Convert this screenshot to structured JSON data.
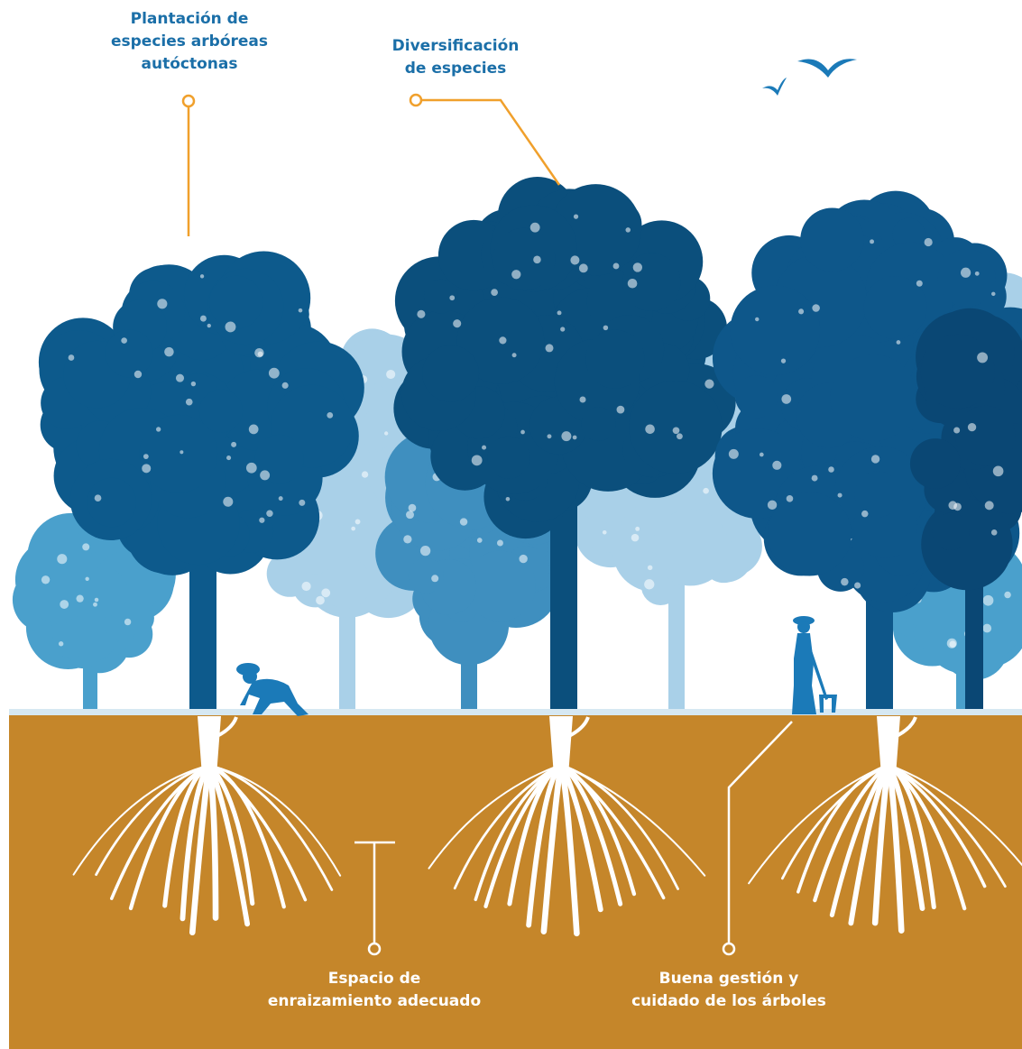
{
  "callouts": [
    {
      "lines": [
        "Plantación de",
        "especies arbóreas",
        "autóctonas"
      ]
    },
    {
      "lines": [
        "Diversificación",
        "de especies"
      ]
    },
    {
      "lines": [
        "Espacio de",
        "enraizamiento adecuado"
      ]
    },
    {
      "lines": [
        "Buena gestión y",
        "cuidado de los árboles"
      ]
    }
  ]
}
